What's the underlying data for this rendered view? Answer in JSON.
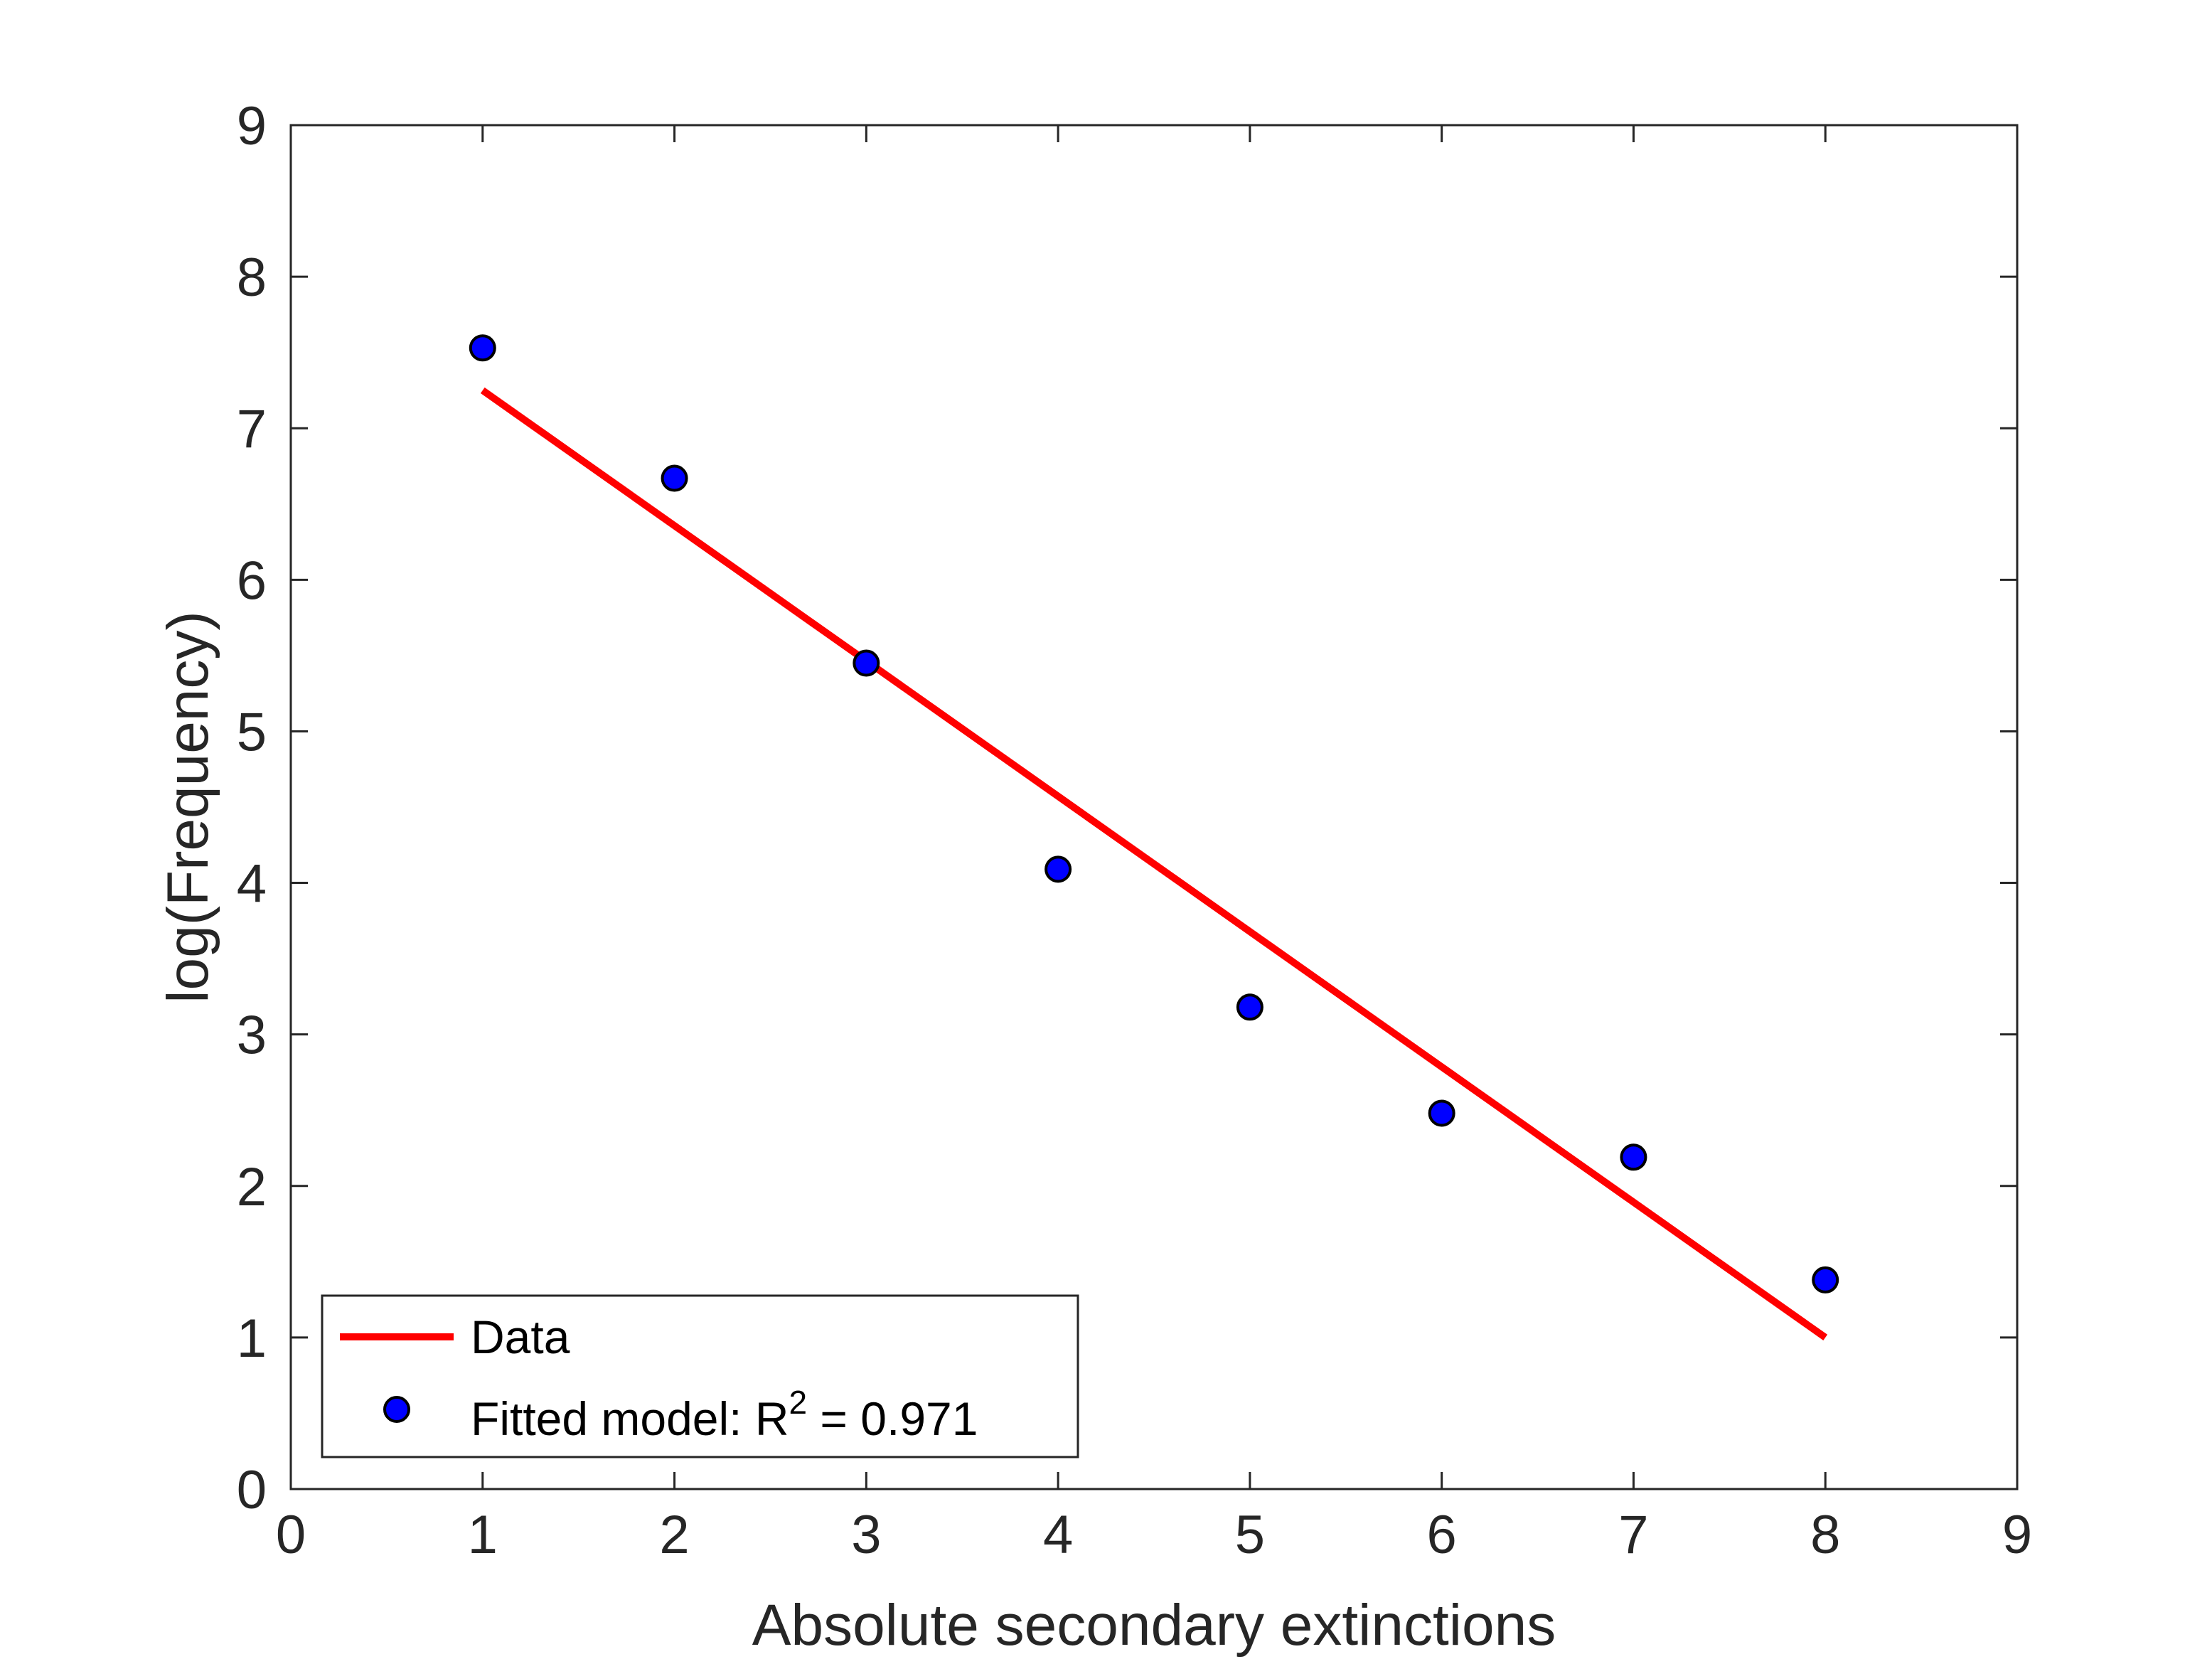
{
  "chart_data": {
    "type": "scatter",
    "title": "",
    "xlabel": "Absolute secondary extinctions",
    "ylabel": "log(Frequency)",
    "xlim": [
      0,
      9
    ],
    "ylim": [
      0,
      9
    ],
    "x_ticks": [
      "0",
      "1",
      "2",
      "3",
      "4",
      "5",
      "6",
      "7",
      "8",
      "9"
    ],
    "y_ticks": [
      "0",
      "1",
      "2",
      "3",
      "4",
      "5",
      "6",
      "7",
      "8",
      "9"
    ],
    "grid": false,
    "legend_position": "bottom-left",
    "series": [
      {
        "name": "Data",
        "kind": "line",
        "color": "#ff0000",
        "x": [
          1,
          8
        ],
        "y": [
          7.25,
          1.0
        ]
      },
      {
        "name": "Fitted model: R",
        "name_superscript": "2",
        "name_suffix": " = 0.971",
        "kind": "markers",
        "color": "#0000ff",
        "edge_color": "#000000",
        "x": [
          1,
          2,
          3,
          4,
          5,
          6,
          7,
          8
        ],
        "y": [
          7.53,
          6.67,
          5.45,
          4.09,
          3.18,
          2.48,
          2.19,
          1.38
        ]
      }
    ]
  }
}
